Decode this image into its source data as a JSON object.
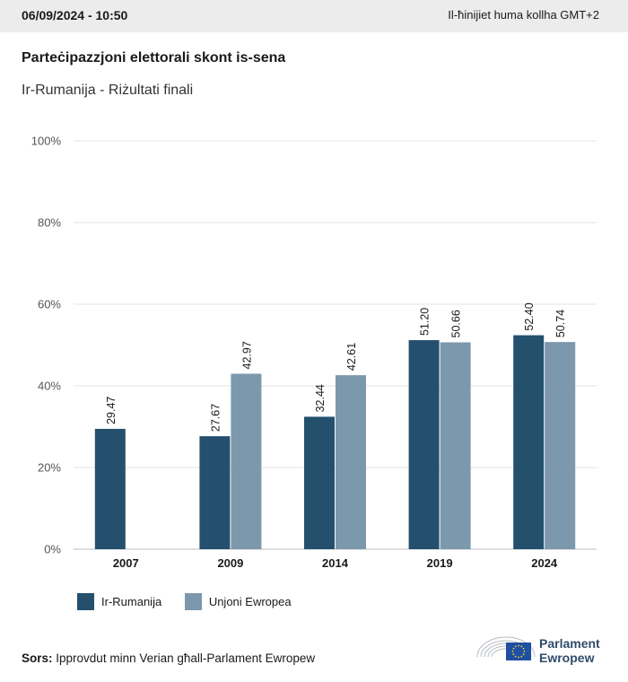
{
  "header": {
    "datetime": "06/09/2024 - 10:50",
    "timezone_note": "Il-ħinijiet huma kollha GMT+2"
  },
  "title": "Parteċipazzjoni elettorali skont is-sena",
  "subtitle": "Ir-Rumanija - Riżultati finali",
  "chart_data": {
    "type": "bar",
    "categories": [
      "2007",
      "2009",
      "2014",
      "2019",
      "2024"
    ],
    "series": [
      {
        "name": "Ir-Rumanija",
        "color": "#24506e",
        "values": [
          29.47,
          27.67,
          32.44,
          51.2,
          52.4
        ]
      },
      {
        "name": "Unjoni Ewropea",
        "color": "#7b98ad",
        "values": [
          null,
          42.97,
          42.61,
          50.66,
          50.74
        ]
      }
    ],
    "value_labels": [
      [
        "29.47",
        "27.67",
        "32.44",
        "51.20",
        "52.40"
      ],
      [
        "",
        "42.97",
        "42.61",
        "50.66",
        "50.74"
      ]
    ],
    "y_ticks": [
      "0%",
      "20%",
      "40%",
      "60%",
      "80%",
      "100%"
    ],
    "ylim": [
      0,
      100
    ],
    "grid": true,
    "legend": "bottom-left"
  },
  "source": {
    "label": "Sors:",
    "text": "Ipprovdut minn Verian għall-Parlament Ewropew"
  },
  "logo": {
    "line1": "Parlament",
    "line2": "Ewropew",
    "color": "#2f4c6c"
  }
}
